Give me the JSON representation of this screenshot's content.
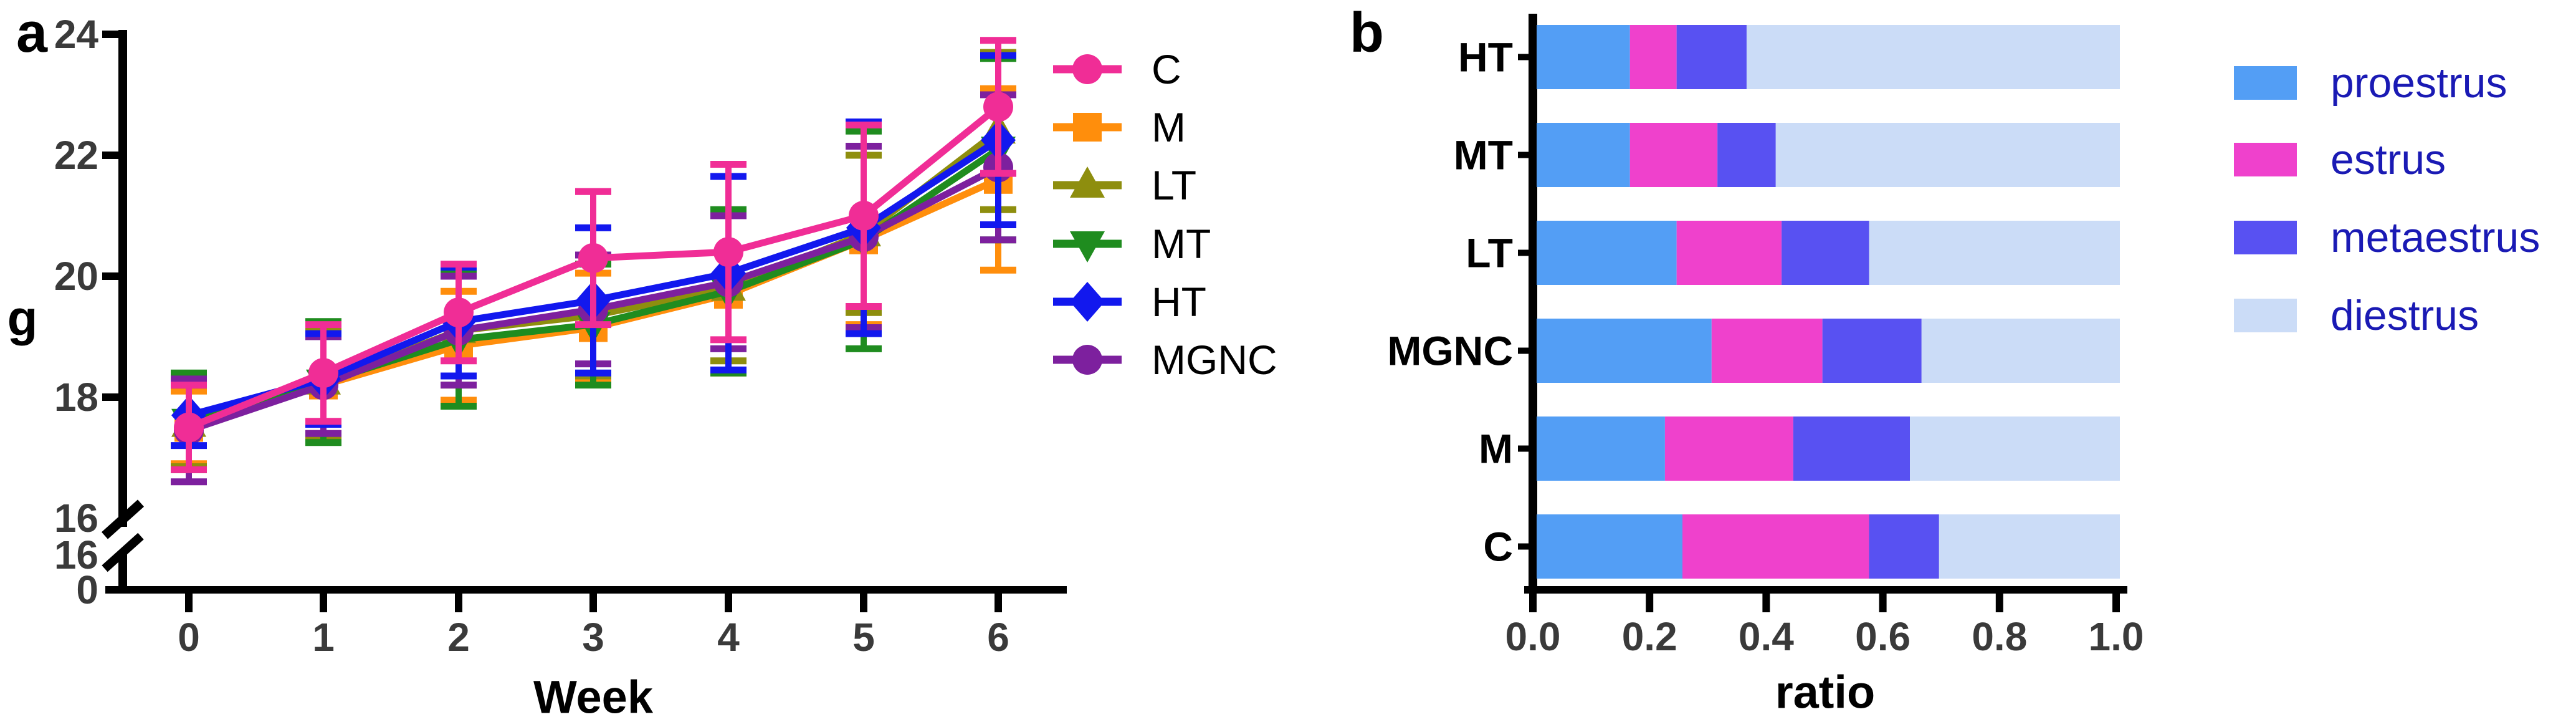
{
  "figure": {
    "background": "#ffffff"
  },
  "panel_a": {
    "label": "a"
  },
  "panel_b": {
    "label": "b"
  },
  "chart_data": [
    {
      "type": "line",
      "panel": "a",
      "title": "",
      "xlabel": "Week",
      "ylabel": "g",
      "x": [
        0,
        1,
        2,
        3,
        4,
        5,
        6
      ],
      "x_tick_labels": [
        "0",
        "1",
        "2",
        "3",
        "4",
        "5",
        "6"
      ],
      "y_axis": {
        "upper_tick_values": [
          24,
          22,
          20,
          18
        ],
        "upper_tick_labels": [
          "24",
          "22",
          "20",
          "18"
        ],
        "break_label": "16",
        "lower_break_label": "16",
        "origin_label": "0",
        "display_range": [
          16,
          24
        ],
        "axis_break": true
      },
      "legend_position": "right",
      "z_order": [
        "M",
        "LT",
        "MT",
        "MGNC",
        "HT",
        "C"
      ],
      "series": [
        {
          "name": "C",
          "color": "#f02d96",
          "marker": "circle",
          "values": [
            17.5,
            18.4,
            19.4,
            20.3,
            20.4,
            21.0,
            22.8
          ],
          "errors": [
            0.7,
            0.8,
            0.8,
            1.1,
            1.45,
            1.5,
            1.1
          ]
        },
        {
          "name": "M",
          "color": "#ff8e0c",
          "marker": "square",
          "values": [
            17.5,
            18.2,
            18.85,
            19.15,
            19.7,
            20.6,
            21.6
          ],
          "errors": [
            0.6,
            0.8,
            0.9,
            0.9,
            1.3,
            1.4,
            1.5
          ]
        },
        {
          "name": "LT",
          "color": "#8e8e0e",
          "marker": "triangle-up",
          "values": [
            17.55,
            18.25,
            19.1,
            19.35,
            19.8,
            20.7,
            22.4
          ],
          "errors": [
            0.7,
            0.9,
            0.9,
            1.0,
            1.2,
            1.3,
            1.3
          ]
        },
        {
          "name": "MT",
          "color": "#1f8c1f",
          "marker": "triangle-down",
          "values": [
            17.6,
            18.25,
            18.95,
            19.2,
            19.75,
            20.6,
            22.1
          ],
          "errors": [
            0.8,
            1.0,
            1.1,
            1.0,
            1.35,
            1.8,
            1.5
          ]
        },
        {
          "name": "HT",
          "color": "#1218ee",
          "marker": "diamond",
          "values": [
            17.7,
            18.3,
            19.25,
            19.6,
            20.05,
            20.8,
            22.25
          ],
          "errors": [
            0.5,
            0.75,
            0.9,
            1.2,
            1.6,
            1.75,
            1.4
          ]
        },
        {
          "name": "MGNC",
          "color": "#7d209e",
          "marker": "circle",
          "values": [
            17.45,
            18.2,
            19.1,
            19.45,
            19.9,
            20.65,
            21.8
          ],
          "errors": [
            0.85,
            0.8,
            0.9,
            0.9,
            1.1,
            1.5,
            1.2
          ]
        }
      ]
    },
    {
      "type": "bar",
      "panel": "b",
      "orientation": "horizontal",
      "stacked": true,
      "title": "",
      "xlabel": "ratio",
      "xlim": [
        0,
        1
      ],
      "x_tick_values": [
        0,
        0.2,
        0.4,
        0.6,
        0.8,
        1.0
      ],
      "x_tick_labels": [
        "0.0",
        "0.2",
        "0.4",
        "0.6",
        "0.8",
        "1.0"
      ],
      "categories_top_to_bottom": [
        "HT",
        "MT",
        "LT",
        "MGNC",
        "M",
        "C"
      ],
      "legend_position": "right",
      "legend_text_color": "#1a1ab4",
      "series": [
        {
          "name": "proestrus",
          "color": "#539ef5",
          "values": [
            0.16,
            0.16,
            0.24,
            0.3,
            0.22,
            0.25
          ]
        },
        {
          "name": "estrus",
          "color": "#ef41cc",
          "values": [
            0.08,
            0.15,
            0.18,
            0.19,
            0.22,
            0.32
          ]
        },
        {
          "name": "metaestrus",
          "color": "#5851f2",
          "values": [
            0.12,
            0.1,
            0.15,
            0.17,
            0.2,
            0.12
          ]
        },
        {
          "name": "diestrus",
          "color": "#cbdcf7",
          "values": [
            0.64,
            0.59,
            0.43,
            0.34,
            0.36,
            0.31
          ]
        }
      ]
    }
  ]
}
